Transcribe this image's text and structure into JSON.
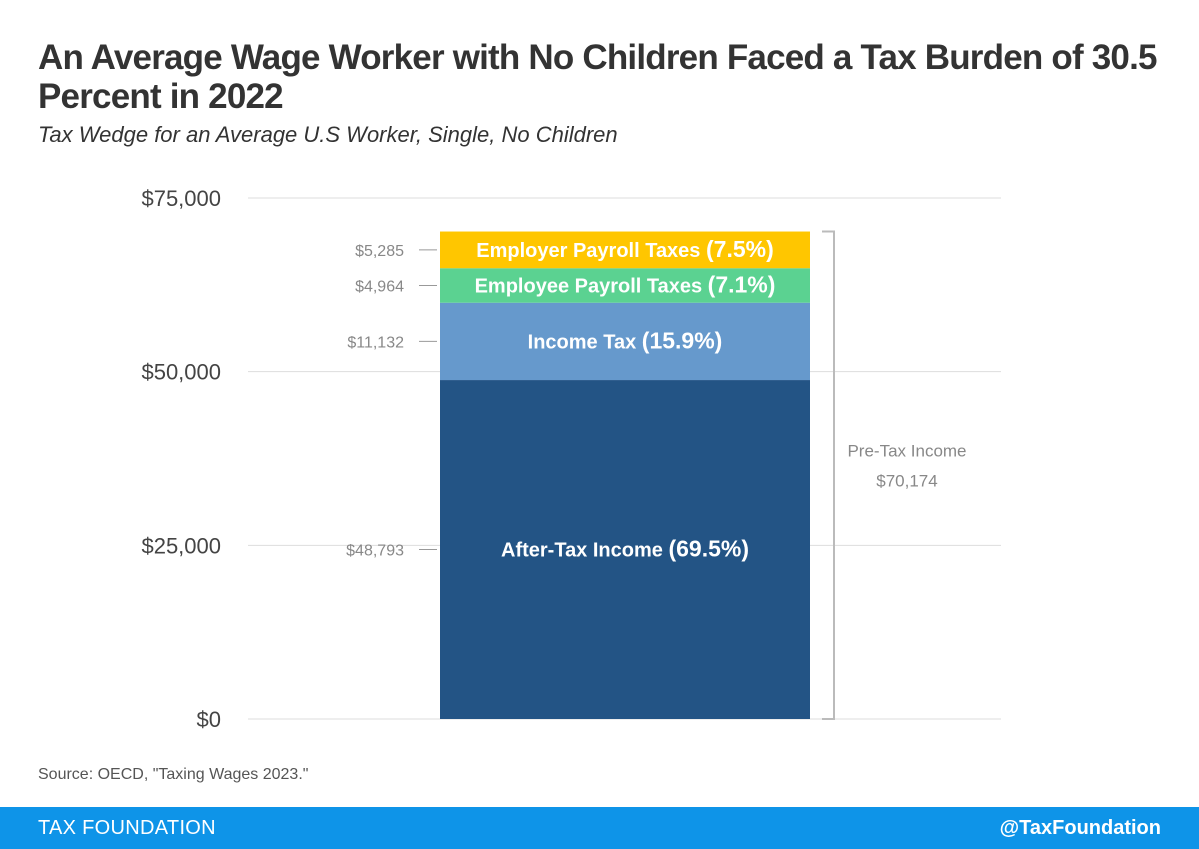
{
  "header": {
    "title": "An Average Wage Worker with No Children Faced a Tax Burden of 30.5 Percent in 2022",
    "subtitle": "Tax Wedge for an Average U.S Worker, Single, No Children"
  },
  "chart_data": {
    "type": "bar",
    "stacked": true,
    "ylim": [
      0,
      75000
    ],
    "yticks": [
      0,
      25000,
      50000,
      75000
    ],
    "ytick_labels": [
      "$0",
      "$25,000",
      "$50,000",
      "$75,000"
    ],
    "grid": true,
    "segments": [
      {
        "name": "After-Tax Income",
        "pct": "(69.5%)",
        "value": 48793,
        "value_label": "$48,793",
        "color": "#235485"
      },
      {
        "name": "Income Tax",
        "pct": "(15.9%)",
        "value": 11132,
        "value_label": "$11,132",
        "color": "#6699cc"
      },
      {
        "name": "Employee Payroll Taxes",
        "pct": "(7.1%)",
        "value": 4964,
        "value_label": "$4,964",
        "color": "#5bd291"
      },
      {
        "name": "Employer Payroll Taxes",
        "pct": "(7.5%)",
        "value": 5285,
        "value_label": "$5,285",
        "color": "#ffc600"
      }
    ],
    "total": {
      "label": "Pre-Tax Income",
      "value": 70174,
      "value_label": "$70,174"
    }
  },
  "source": "Source: OECD, \"Taxing Wages 2023.\"",
  "footer": {
    "brand": "TAX FOUNDATION",
    "handle": "@TaxFoundation",
    "color": "#0e94e8"
  }
}
